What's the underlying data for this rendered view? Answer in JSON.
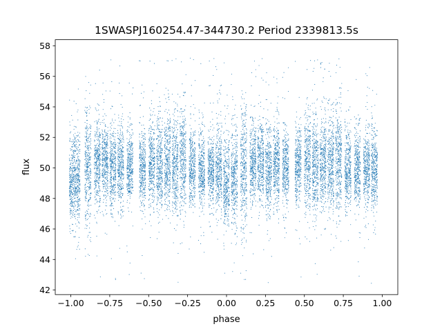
{
  "chart_data": {
    "type": "scatter",
    "title": "1SWASPJ160254.47-344730.2 Period 2339813.5s",
    "xlabel": "phase",
    "ylabel": "flux",
    "xlim": [
      -1.1,
      1.1
    ],
    "ylim": [
      41.7,
      58.4
    ],
    "x_ticks": [
      -1.0,
      -0.75,
      -0.5,
      -0.25,
      0.0,
      0.25,
      0.5,
      0.75,
      1.0
    ],
    "x_tick_labels": [
      "−1.00",
      "−0.75",
      "−0.50",
      "−0.25",
      "0.00",
      "0.25",
      "0.50",
      "0.75",
      "1.00"
    ],
    "y_ticks": [
      42,
      44,
      46,
      48,
      50,
      52,
      54,
      56,
      58
    ],
    "y_tick_labels": [
      "42",
      "44",
      "46",
      "48",
      "50",
      "52",
      "54",
      "56",
      "58"
    ],
    "grid": false,
    "legend": "none",
    "marker_color": "#1f77b4",
    "phase_range": [
      -1.0,
      0.95
    ],
    "flux_median": 49.9,
    "flux_typical_spread": [
      47.5,
      52.0
    ],
    "flux_extremes": [
      42.4,
      57.2
    ],
    "clusters": [
      {
        "phase": -1.0,
        "center": 49.0,
        "spread": 1.4
      },
      {
        "phase": -0.96,
        "center": 49.3,
        "spread": 1.6
      },
      {
        "phase": -0.89,
        "center": 50.0,
        "spread": 2.0
      },
      {
        "phase": -0.83,
        "center": 50.3,
        "spread": 1.3
      },
      {
        "phase": -0.78,
        "center": 50.4,
        "spread": 1.3
      },
      {
        "phase": -0.73,
        "center": 49.9,
        "spread": 1.3
      },
      {
        "phase": -0.68,
        "center": 50.2,
        "spread": 1.3
      },
      {
        "phase": -0.62,
        "center": 49.9,
        "spread": 1.2
      },
      {
        "phase": -0.54,
        "center": 50.1,
        "spread": 1.3
      },
      {
        "phase": -0.48,
        "center": 50.3,
        "spread": 1.5
      },
      {
        "phase": -0.43,
        "center": 50.1,
        "spread": 1.5
      },
      {
        "phase": -0.38,
        "center": 50.3,
        "spread": 1.5
      },
      {
        "phase": -0.33,
        "center": 50.1,
        "spread": 1.6
      },
      {
        "phase": -0.28,
        "center": 50.5,
        "spread": 1.7
      },
      {
        "phase": -0.22,
        "center": 49.9,
        "spread": 1.3
      },
      {
        "phase": -0.16,
        "center": 49.9,
        "spread": 1.2
      },
      {
        "phase": -0.1,
        "center": 49.9,
        "spread": 1.2
      },
      {
        "phase": -0.05,
        "center": 49.8,
        "spread": 1.3
      },
      {
        "phase": 0.0,
        "center": 49.0,
        "spread": 1.4
      },
      {
        "phase": 0.05,
        "center": 49.3,
        "spread": 1.6
      },
      {
        "phase": 0.11,
        "center": 50.0,
        "spread": 2.0
      },
      {
        "phase": 0.17,
        "center": 50.3,
        "spread": 1.3
      },
      {
        "phase": 0.22,
        "center": 50.4,
        "spread": 1.3
      },
      {
        "phase": 0.27,
        "center": 49.9,
        "spread": 1.3
      },
      {
        "phase": 0.32,
        "center": 50.2,
        "spread": 1.3
      },
      {
        "phase": 0.38,
        "center": 49.9,
        "spread": 1.2
      },
      {
        "phase": 0.46,
        "center": 50.1,
        "spread": 1.3
      },
      {
        "phase": 0.52,
        "center": 50.3,
        "spread": 1.5
      },
      {
        "phase": 0.57,
        "center": 50.1,
        "spread": 1.5
      },
      {
        "phase": 0.62,
        "center": 50.3,
        "spread": 1.5
      },
      {
        "phase": 0.67,
        "center": 50.1,
        "spread": 1.6
      },
      {
        "phase": 0.72,
        "center": 50.5,
        "spread": 1.7
      },
      {
        "phase": 0.78,
        "center": 49.9,
        "spread": 1.3
      },
      {
        "phase": 0.84,
        "center": 49.9,
        "spread": 1.2
      },
      {
        "phase": 0.9,
        "center": 49.9,
        "spread": 1.2
      },
      {
        "phase": 0.95,
        "center": 49.8,
        "spread": 1.3
      }
    ]
  }
}
